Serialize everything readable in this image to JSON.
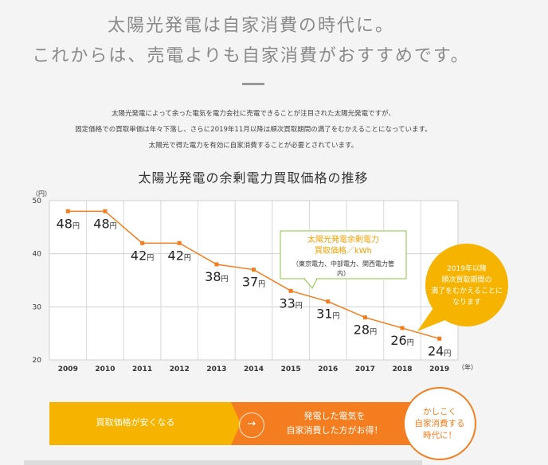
{
  "headline": {
    "line1": "太陽光発電は自家消費の時代に。",
    "line2": "これからは、売電よりも自家消費がおすすめです。"
  },
  "intro": {
    "line1": "太陽光発電によって余った電気を電力会社に売電できることが注目された太陽光発電ですが、",
    "line2": "固定価格での買取単価は年々下落し、さらに2019年11月以降は順次買取期間の満了をむかえることになっています。",
    "line3": "太陽光で得た電力を有効に自家消費することが必要とされています。"
  },
  "chart_data": {
    "type": "line",
    "title": "太陽光発電の余剰電力買取価格の推移",
    "y_unit_label": "（円）",
    "x_unit_label": "（年）",
    "x": [
      "2009",
      "2010",
      "2011",
      "2012",
      "2013",
      "2014",
      "2015",
      "2016",
      "2017",
      "2018",
      "2019"
    ],
    "values": [
      48,
      48,
      42,
      42,
      38,
      37,
      33,
      31,
      28,
      26,
      24
    ],
    "value_suffix": "円",
    "ylim": [
      20,
      50
    ],
    "yticks": [
      20,
      30,
      40,
      50
    ],
    "grid": true,
    "line_color": "#f47e1f",
    "callout_lines": [
      "太陽光発電余剰電力",
      "買取価格／kWh",
      "（東京電力、中部電力、関西電力管",
      "内）"
    ],
    "bubble_lines": [
      "2019年以降",
      "順次買取期間の",
      "満了をむかえることに",
      "なります"
    ],
    "callout_color": "#8cc63f",
    "bubble_color": "#f6b400"
  },
  "bottom": {
    "left_text": "買取価格が安くなる",
    "right_text_line1": "発電した電気を",
    "right_text_line2": "自家消費した方がお得！",
    "arrow_glyph": "→",
    "circle_text": "かしこく\n自家消費する\n時代に！",
    "left_color": "#f6b400",
    "right_color": "#f47e1f"
  }
}
